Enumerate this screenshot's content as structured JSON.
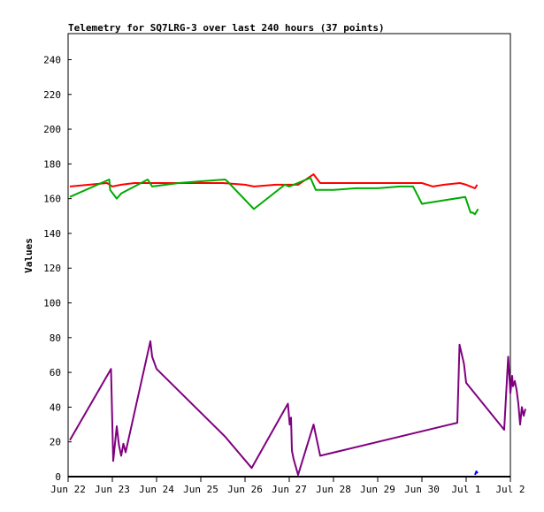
{
  "chart_data": {
    "type": "line",
    "title": "Telemetry for SQ7LRG-3 over last 240 hours (37 points)",
    "xlabel": "",
    "ylabel": "Values",
    "ylim": [
      0,
      255
    ],
    "yticks": [
      0,
      20,
      40,
      60,
      80,
      100,
      120,
      140,
      160,
      180,
      200,
      220,
      240
    ],
    "xlim": [
      0,
      10
    ],
    "xticks": [
      {
        "v": 0,
        "label": "Jun 22"
      },
      {
        "v": 1,
        "label": "Jun 23"
      },
      {
        "v": 2,
        "label": "Jun 24"
      },
      {
        "v": 3,
        "label": "Jun 25"
      },
      {
        "v": 4,
        "label": "Jun 26"
      },
      {
        "v": 5,
        "label": "Jun 27"
      },
      {
        "v": 6,
        "label": "Jun 28"
      },
      {
        "v": 7,
        "label": "Jun 29"
      },
      {
        "v": 8,
        "label": "Jun 30"
      },
      {
        "v": 9,
        "label": "Jul 1"
      },
      {
        "v": 10,
        "label": "Jul 2"
      }
    ],
    "grid": false,
    "series": [
      {
        "color": "#ff0000",
        "x": [
          0.04,
          0.88,
          0.94,
          1.0,
          1.2,
          1.5,
          2.0,
          2.5,
          3.0,
          3.5,
          4.0,
          4.2,
          4.7,
          5.0,
          5.2,
          5.55,
          5.7,
          6.0,
          7.0,
          7.5,
          8.0,
          8.25,
          8.5,
          8.86,
          9.0,
          9.1,
          9.2,
          9.25
        ],
        "y": [
          167,
          169,
          168,
          167,
          168,
          169,
          169,
          169,
          169,
          169,
          168,
          167,
          168,
          168,
          168,
          174,
          169,
          169,
          169,
          169,
          169,
          167,
          168,
          169,
          168,
          167,
          166,
          168
        ]
      },
      {
        "color": "#00aa00",
        "x": [
          0.04,
          0.93,
          0.95,
          1.1,
          1.2,
          1.8,
          1.9,
          2.5,
          3.0,
          3.55,
          3.6,
          4.2,
          4.9,
          5.0,
          5.1,
          5.48,
          5.6,
          6.0,
          6.5,
          7.0,
          7.5,
          7.8,
          8.0,
          8.98,
          9.1,
          9.15,
          9.2,
          9.27
        ],
        "y": [
          161,
          171,
          165,
          160,
          163,
          171,
          167,
          169,
          170,
          171,
          170,
          154,
          168,
          167,
          168,
          172,
          165,
          165,
          166,
          166,
          167,
          167,
          157,
          161,
          152,
          152,
          151,
          154
        ]
      },
      {
        "color": "#800080",
        "x": [
          0.04,
          0.97,
          1.02,
          1.1,
          1.15,
          1.2,
          1.25,
          1.3,
          1.86,
          1.9,
          2.0,
          3.55,
          4.15,
          4.97,
          5.01,
          5.04,
          5.06,
          5.1,
          5.2,
          5.55,
          5.7,
          8.8,
          8.85,
          8.95,
          9.0,
          9.86,
          9.95,
          10.0,
          10.04,
          10.06,
          10.1,
          10.14,
          10.18,
          10.22,
          10.26,
          10.3,
          10.34
        ],
        "y": [
          21,
          62,
          9,
          29,
          18,
          12,
          19,
          14,
          78,
          69,
          62,
          23,
          5,
          42,
          30,
          34,
          15,
          10,
          1,
          30,
          12,
          31,
          76,
          65,
          54,
          27,
          69,
          48,
          58,
          52,
          55,
          50,
          42,
          30,
          40,
          35,
          39
        ]
      },
      {
        "color": "#0000ff",
        "x": [
          9.2,
          9.23,
          9.26
        ],
        "y": [
          1,
          3,
          2
        ]
      }
    ]
  }
}
